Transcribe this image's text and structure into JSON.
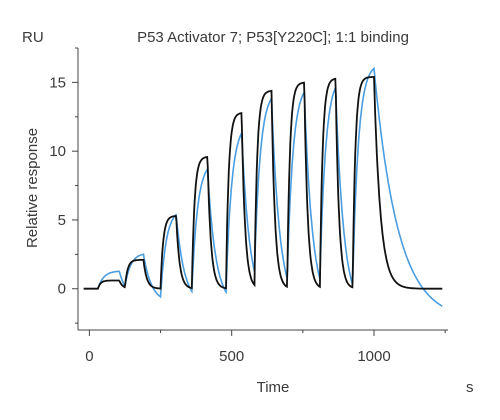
{
  "chart_data": {
    "type": "line",
    "title": "P53 Activator 7; P53[Y220C]; 1:1 binding",
    "ylabel": "Relative response",
    "y_unit": "RU",
    "xlabel": "Time",
    "x_unit": "s",
    "xlim": [
      -40,
      1260
    ],
    "ylim": [
      -3,
      17.5
    ],
    "x_ticks": [
      0,
      500,
      1000
    ],
    "y_ticks": [
      0,
      5,
      10,
      15
    ],
    "grid": false,
    "legend": "none",
    "cycles": [
      {
        "inject_start": 30,
        "inject_end": 105,
        "plateau_measured": 0.6,
        "plateau_fit": 1.3
      },
      {
        "inject_start": 125,
        "inject_end": 190,
        "plateau_measured": 2.1,
        "plateau_fit": 2.6
      },
      {
        "inject_start": 250,
        "inject_end": 305,
        "plateau_measured": 5.3,
        "plateau_fit": 5.8
      },
      {
        "inject_start": 360,
        "inject_end": 415,
        "plateau_measured": 9.6,
        "plateau_fit": 9.3
      },
      {
        "inject_start": 480,
        "inject_end": 535,
        "plateau_measured": 12.8,
        "plateau_fit": 12.1
      },
      {
        "inject_start": 580,
        "inject_end": 640,
        "plateau_measured": 14.4,
        "plateau_fit": 14.5
      },
      {
        "inject_start": 695,
        "inject_end": 755,
        "plateau_measured": 15.0,
        "plateau_fit": 15.0
      },
      {
        "inject_start": 810,
        "inject_end": 865,
        "plateau_measured": 15.3,
        "plateau_fit": 15.6
      },
      {
        "inject_start": 925,
        "inject_end": 1000,
        "plateau_measured": 15.4,
        "plateau_fit": 16.4
      }
    ],
    "series": [
      {
        "role": "measured",
        "color": "#111111",
        "baseline": 0
      },
      {
        "role": "fit",
        "color": "#4a9de0",
        "baseline": 0,
        "final_value": -2.3
      }
    ]
  }
}
